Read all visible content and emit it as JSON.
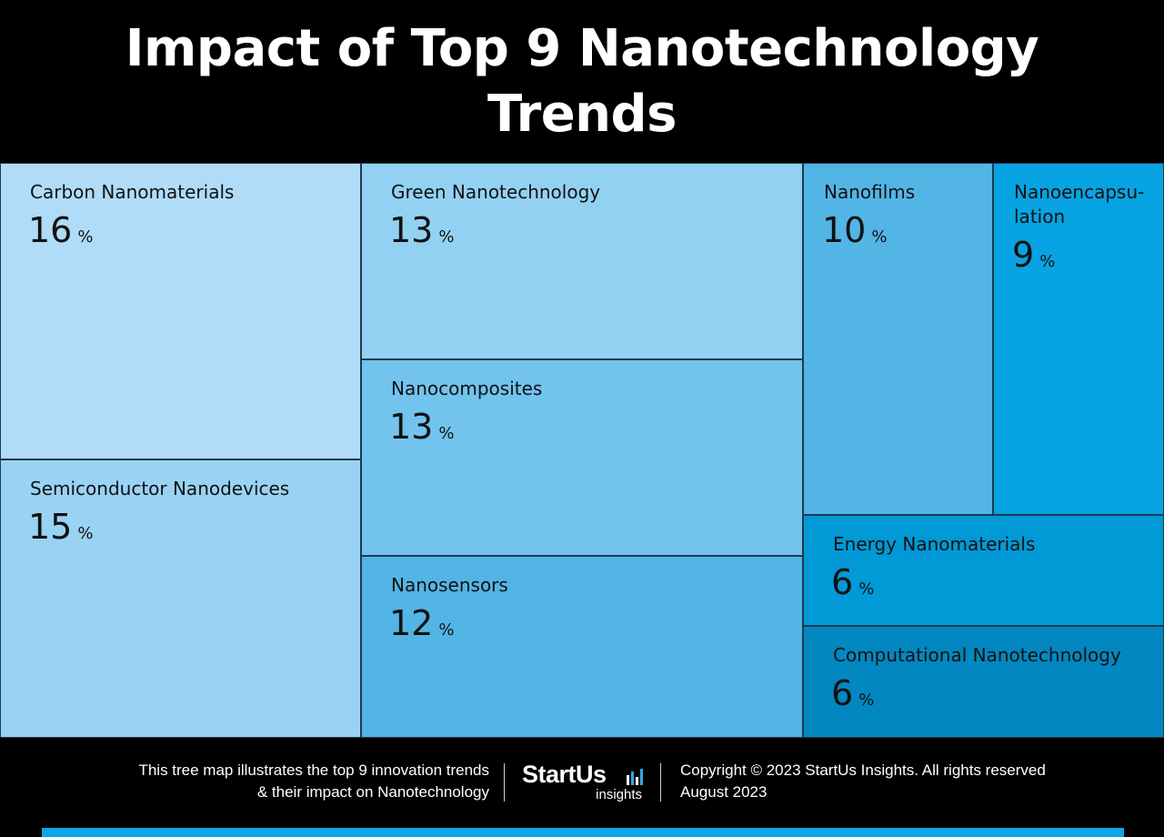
{
  "title": {
    "line1": "Impact of Top 9 Nanotechnology",
    "line2": "Trends"
  },
  "chart_data": {
    "type": "treemap",
    "title": "Impact of Top 9 Nanotechnology Trends",
    "unit": "%",
    "items": [
      {
        "name": "Carbon Nanomaterials",
        "value": 16,
        "color": "#b0dcf7"
      },
      {
        "name": "Semiconductor Nanodevices",
        "value": 15,
        "color": "#99d3f4"
      },
      {
        "name": "Green Nanotechnology",
        "value": 13,
        "color": "#93d1f3"
      },
      {
        "name": "Nanocomposites",
        "value": 13,
        "color": "#72c3ee"
      },
      {
        "name": "Nanosensors",
        "value": 12,
        "color": "#53b4e6"
      },
      {
        "name": "Nanofilms",
        "value": 10,
        "color": "#53b4e6"
      },
      {
        "name": "Nanoencapsu-lation",
        "value": 9,
        "color": "#07a3e2"
      },
      {
        "name": "Energy Nanomaterials",
        "value": 6,
        "color": "#0199d6"
      },
      {
        "name": "Computational Nanotechnology",
        "value": 6,
        "color": "#0287c0"
      }
    ]
  },
  "footer": {
    "description_line1": "This tree map illustrates the top 9 innovation trends",
    "description_line2": "& their impact on Nanotechnology",
    "logo_main": "StartUs",
    "logo_sub": "insights",
    "copyright_line1": "Copyright © 2023 StartUs Insights. All rights reserved",
    "copyright_line2": "August 2023",
    "accent_color": "#0ea5e9"
  }
}
